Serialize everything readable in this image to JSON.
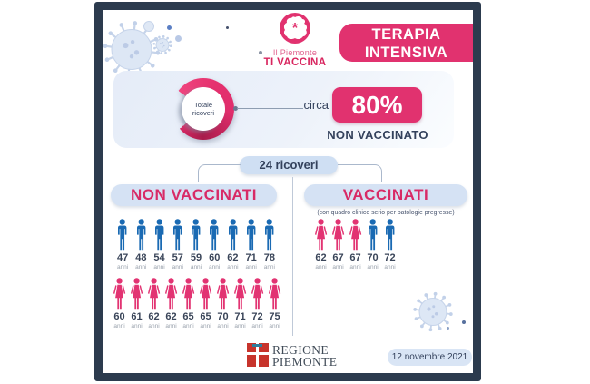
{
  "colors": {
    "frame": "#2c3b4e",
    "pink": "#e1326f",
    "pink_text": "#d82a66",
    "navy": "#33415c",
    "male_icon": "#1a6ab3",
    "female_icon": "#e23372",
    "pill_bg": "#d5e2f4",
    "logo_red": "#c7342c"
  },
  "header": {
    "logo_top": "Il Piemonte",
    "logo_bottom": "TI VACCINA",
    "title_line1": "TERAPIA",
    "title_line2": "INTENSIVA"
  },
  "hero": {
    "donut_center_line1": "Totale",
    "donut_center_line2": "ricoveri",
    "circa_label": "circa",
    "percent_value": "80%",
    "percent_caption": "NON VACCINATO",
    "donut_percent": 80
  },
  "summary_pill": "24 ricoveri",
  "age_unit": "anni",
  "columns": {
    "left": {
      "title": "NON VACCINATI",
      "rows": [
        {
          "people": [
            {
              "gender": "male",
              "age": 47
            },
            {
              "gender": "male",
              "age": 48
            },
            {
              "gender": "male",
              "age": 54
            },
            {
              "gender": "male",
              "age": 57
            },
            {
              "gender": "male",
              "age": 59
            },
            {
              "gender": "male",
              "age": 60
            },
            {
              "gender": "male",
              "age": 62
            },
            {
              "gender": "male",
              "age": 71
            },
            {
              "gender": "male",
              "age": 78
            }
          ]
        },
        {
          "people": [
            {
              "gender": "female",
              "age": 60
            },
            {
              "gender": "female",
              "age": 61
            },
            {
              "gender": "female",
              "age": 62
            },
            {
              "gender": "female",
              "age": 62
            },
            {
              "gender": "female",
              "age": 65
            },
            {
              "gender": "female",
              "age": 65
            },
            {
              "gender": "female",
              "age": 70
            },
            {
              "gender": "female",
              "age": 71
            },
            {
              "gender": "female",
              "age": 72
            },
            {
              "gender": "female",
              "age": 75
            }
          ]
        }
      ]
    },
    "right": {
      "title": "VACCINATI",
      "subtitle": "(con quadro clinico serio per patologie pregresse)",
      "rows": [
        {
          "people": [
            {
              "gender": "female",
              "age": 62
            },
            {
              "gender": "female",
              "age": 67
            },
            {
              "gender": "female",
              "age": 67
            },
            {
              "gender": "male",
              "age": 70
            },
            {
              "gender": "male",
              "age": 72
            }
          ]
        }
      ]
    }
  },
  "footer": {
    "org_line1": "REGIONE",
    "org_line2": "PIEMONTE",
    "date": "12 novembre 2021"
  },
  "chart_data": [
    {
      "type": "pie",
      "title": "Totale ricoveri",
      "labels": [
        "NON VACCINATO (circa)",
        "VACCINATO"
      ],
      "values": [
        80,
        20
      ],
      "unit": "%",
      "note": "circa 80% NON VACCINATO"
    },
    {
      "type": "pictograph",
      "title": "24 ricoveri",
      "groups": [
        {
          "name": "NON VACCINATI",
          "count": 19,
          "male_ages": [
            47,
            48,
            54,
            57,
            59,
            60,
            62,
            71,
            78
          ],
          "female_ages": [
            60,
            61,
            62,
            62,
            65,
            65,
            70,
            71,
            72,
            75
          ]
        },
        {
          "name": "VACCINATI",
          "note": "con quadro clinico serio per patologie pregresse",
          "count": 5,
          "female_ages": [
            62,
            67,
            67
          ],
          "male_ages": [
            70,
            72
          ]
        }
      ]
    }
  ]
}
